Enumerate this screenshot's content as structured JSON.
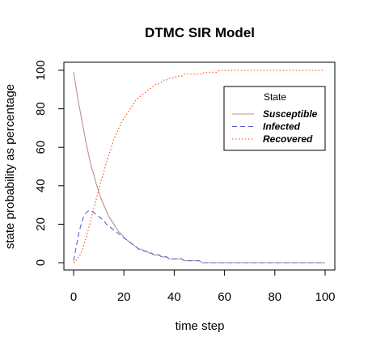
{
  "chart_data": {
    "type": "line",
    "title": "DTMC SIR Model",
    "xlabel": "time step",
    "ylabel": "state probability as percentage",
    "xlim": [
      0,
      100
    ],
    "ylim": [
      0,
      100
    ],
    "x_ticks": [
      0,
      20,
      40,
      60,
      80,
      100
    ],
    "y_ticks": [
      0,
      20,
      40,
      60,
      80,
      100
    ],
    "grid": false,
    "legend": {
      "title": "State",
      "position": "top-right"
    },
    "x": [
      0,
      1,
      2,
      3,
      4,
      5,
      6,
      7,
      8,
      9,
      10,
      11,
      12,
      13,
      14,
      15,
      16,
      17,
      18,
      19,
      20,
      21,
      22,
      23,
      24,
      25,
      26,
      27,
      28,
      29,
      30,
      31,
      32,
      33,
      34,
      35,
      36,
      37,
      38,
      39,
      40,
      41,
      42,
      43,
      44,
      45,
      46,
      47,
      48,
      49,
      50,
      51,
      52,
      53,
      54,
      55,
      56,
      57,
      58,
      59,
      60,
      61,
      62,
      63,
      64,
      65,
      66,
      67,
      68,
      69,
      70,
      71,
      72,
      73,
      74,
      75,
      76,
      77,
      78,
      79,
      80,
      81,
      82,
      83,
      84,
      85,
      86,
      87,
      88,
      89,
      90,
      91,
      92,
      93,
      94,
      95,
      96,
      97,
      98,
      99,
      100
    ],
    "series": [
      {
        "name": "Susceptible",
        "color": "#BC8F8F",
        "dash": "solid",
        "values": [
          99,
          91,
          83,
          76,
          69,
          62,
          56,
          50,
          46,
          41,
          37,
          33,
          30,
          27,
          24,
          22,
          20,
          18,
          16,
          15,
          13,
          12,
          11,
          10,
          9,
          8,
          7,
          7,
          6,
          6,
          5,
          5,
          4,
          4,
          4,
          3,
          3,
          3,
          2,
          2,
          2,
          2,
          2,
          2,
          1,
          1,
          1,
          1,
          1,
          1,
          1,
          0,
          0,
          0,
          0,
          0,
          0,
          0,
          0,
          0,
          0,
          0,
          0,
          0,
          0,
          0,
          0,
          0,
          0,
          0,
          0,
          0,
          0,
          0,
          0,
          0,
          0,
          0,
          0,
          0,
          0,
          0,
          0,
          0,
          0,
          0,
          0,
          0,
          0,
          0,
          0,
          0,
          0,
          0,
          0,
          0,
          0,
          0,
          0,
          0,
          0
        ]
      },
      {
        "name": "Infected",
        "color": "#5B5BD6",
        "dash": "dashed",
        "values": [
          1,
          8,
          15,
          20,
          24,
          26,
          27,
          27,
          26,
          25,
          24,
          23,
          22,
          20,
          19,
          18,
          17,
          16,
          15,
          14,
          13,
          12,
          11,
          10,
          9,
          8,
          7,
          7,
          6,
          6,
          5,
          5,
          4,
          4,
          4,
          3,
          3,
          3,
          2,
          2,
          2,
          2,
          2,
          2,
          1,
          1,
          1,
          1,
          1,
          1,
          1,
          0,
          0,
          0,
          0,
          0,
          0,
          0,
          0,
          0,
          0,
          0,
          0,
          0,
          0,
          0,
          0,
          0,
          0,
          0,
          0,
          0,
          0,
          0,
          0,
          0,
          0,
          0,
          0,
          0,
          0,
          0,
          0,
          0,
          0,
          0,
          0,
          0,
          0,
          0,
          0,
          0,
          0,
          0,
          0,
          0,
          0,
          0,
          0,
          0,
          0
        ]
      },
      {
        "name": "Recovered",
        "color": "#FF4500",
        "dash": "dotted",
        "values": [
          0,
          1,
          3,
          5,
          9,
          13,
          18,
          23,
          28,
          33,
          38,
          43,
          47,
          52,
          56,
          60,
          64,
          67,
          70,
          73,
          75,
          77,
          79,
          81,
          83,
          85,
          86,
          87,
          88,
          89,
          90,
          91,
          92,
          93,
          93,
          94,
          95,
          95,
          96,
          96,
          96,
          97,
          97,
          97,
          98,
          98,
          98,
          98,
          98,
          98,
          98,
          98,
          99,
          99,
          99,
          99,
          99,
          99,
          100,
          100,
          100,
          100,
          100,
          100,
          100,
          100,
          100,
          100,
          100,
          100,
          100,
          100,
          100,
          100,
          100,
          100,
          100,
          100,
          100,
          100,
          100,
          100,
          100,
          100,
          100,
          100,
          100,
          100,
          100,
          100,
          100,
          100,
          100,
          100,
          100,
          100,
          100,
          100,
          100,
          100,
          100
        ]
      }
    ]
  }
}
